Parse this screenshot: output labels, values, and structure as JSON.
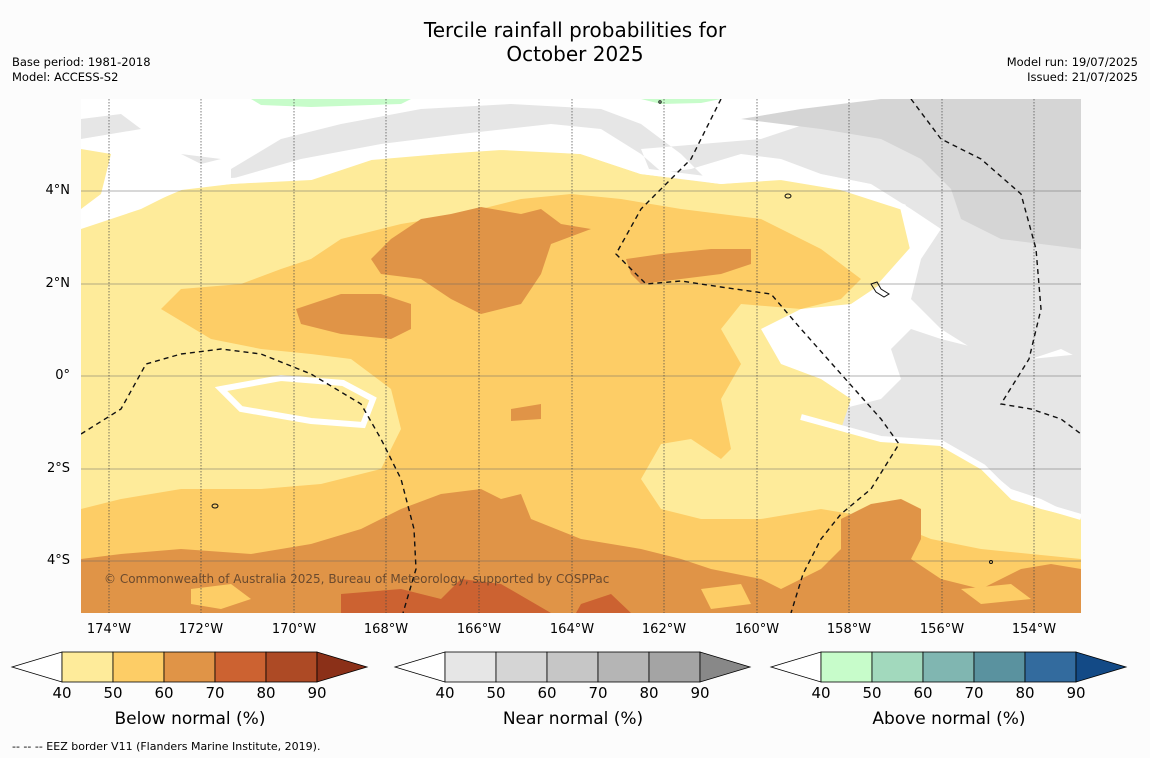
{
  "title_line1": "Tercile rainfall probabilities for",
  "title_line2": "October 2025",
  "base_period": "Base period: 1981-2018",
  "model": "Model: ACCESS-S2",
  "model_run": "Model run: 19/07/2025",
  "issued": "Issued: 21/07/2025",
  "credit": "© Commonwealth of Australia 2025, Bureau of Meteorology, supported by COSPPac",
  "footer": "--  --  -- EEZ border V11 (Flanders Marine Institute, 2019).",
  "lat_labels": [
    "4°N",
    "2°N",
    "0°",
    "2°S",
    "4°S"
  ],
  "lon_labels": [
    "174°W",
    "172°W",
    "170°W",
    "168°W",
    "166°W",
    "164°W",
    "162°W",
    "160°W",
    "158°W",
    "156°W",
    "154°W"
  ],
  "colorbars": [
    {
      "label": "Below normal (%)",
      "ticks": [
        "40",
        "50",
        "60",
        "70",
        "80",
        "90"
      ],
      "colors": [
        "#ffffff",
        "#feeb9a",
        "#fdcd66",
        "#e09447",
        "#cc6231",
        "#ad4a25",
        "#8b3018"
      ]
    },
    {
      "label": "Near normal (%)",
      "ticks": [
        "40",
        "50",
        "60",
        "70",
        "80",
        "90"
      ],
      "colors": [
        "#ffffff",
        "#e6e6e6",
        "#d5d5d5",
        "#c6c6c6",
        "#b5b5b5",
        "#a4a4a4",
        "#888888"
      ]
    },
    {
      "label": "Above normal (%)",
      "ticks": [
        "40",
        "50",
        "60",
        "70",
        "80",
        "90"
      ],
      "colors": [
        "#ffffff",
        "#c7fcca",
        "#a2d9bd",
        "#80b6b1",
        "#5a929f",
        "#336b9e",
        "#134a86"
      ]
    }
  ],
  "map_colors": {
    "below_40_50": "#feeb9a",
    "below_50_60": "#fdcd66",
    "below_60_70": "#e09447",
    "below_70_80": "#cc6231",
    "near_40_50": "#e6e6e6",
    "near_50_60": "#d5d5d5",
    "above_40_50": "#c7fcca",
    "white": "#ffffff"
  }
}
